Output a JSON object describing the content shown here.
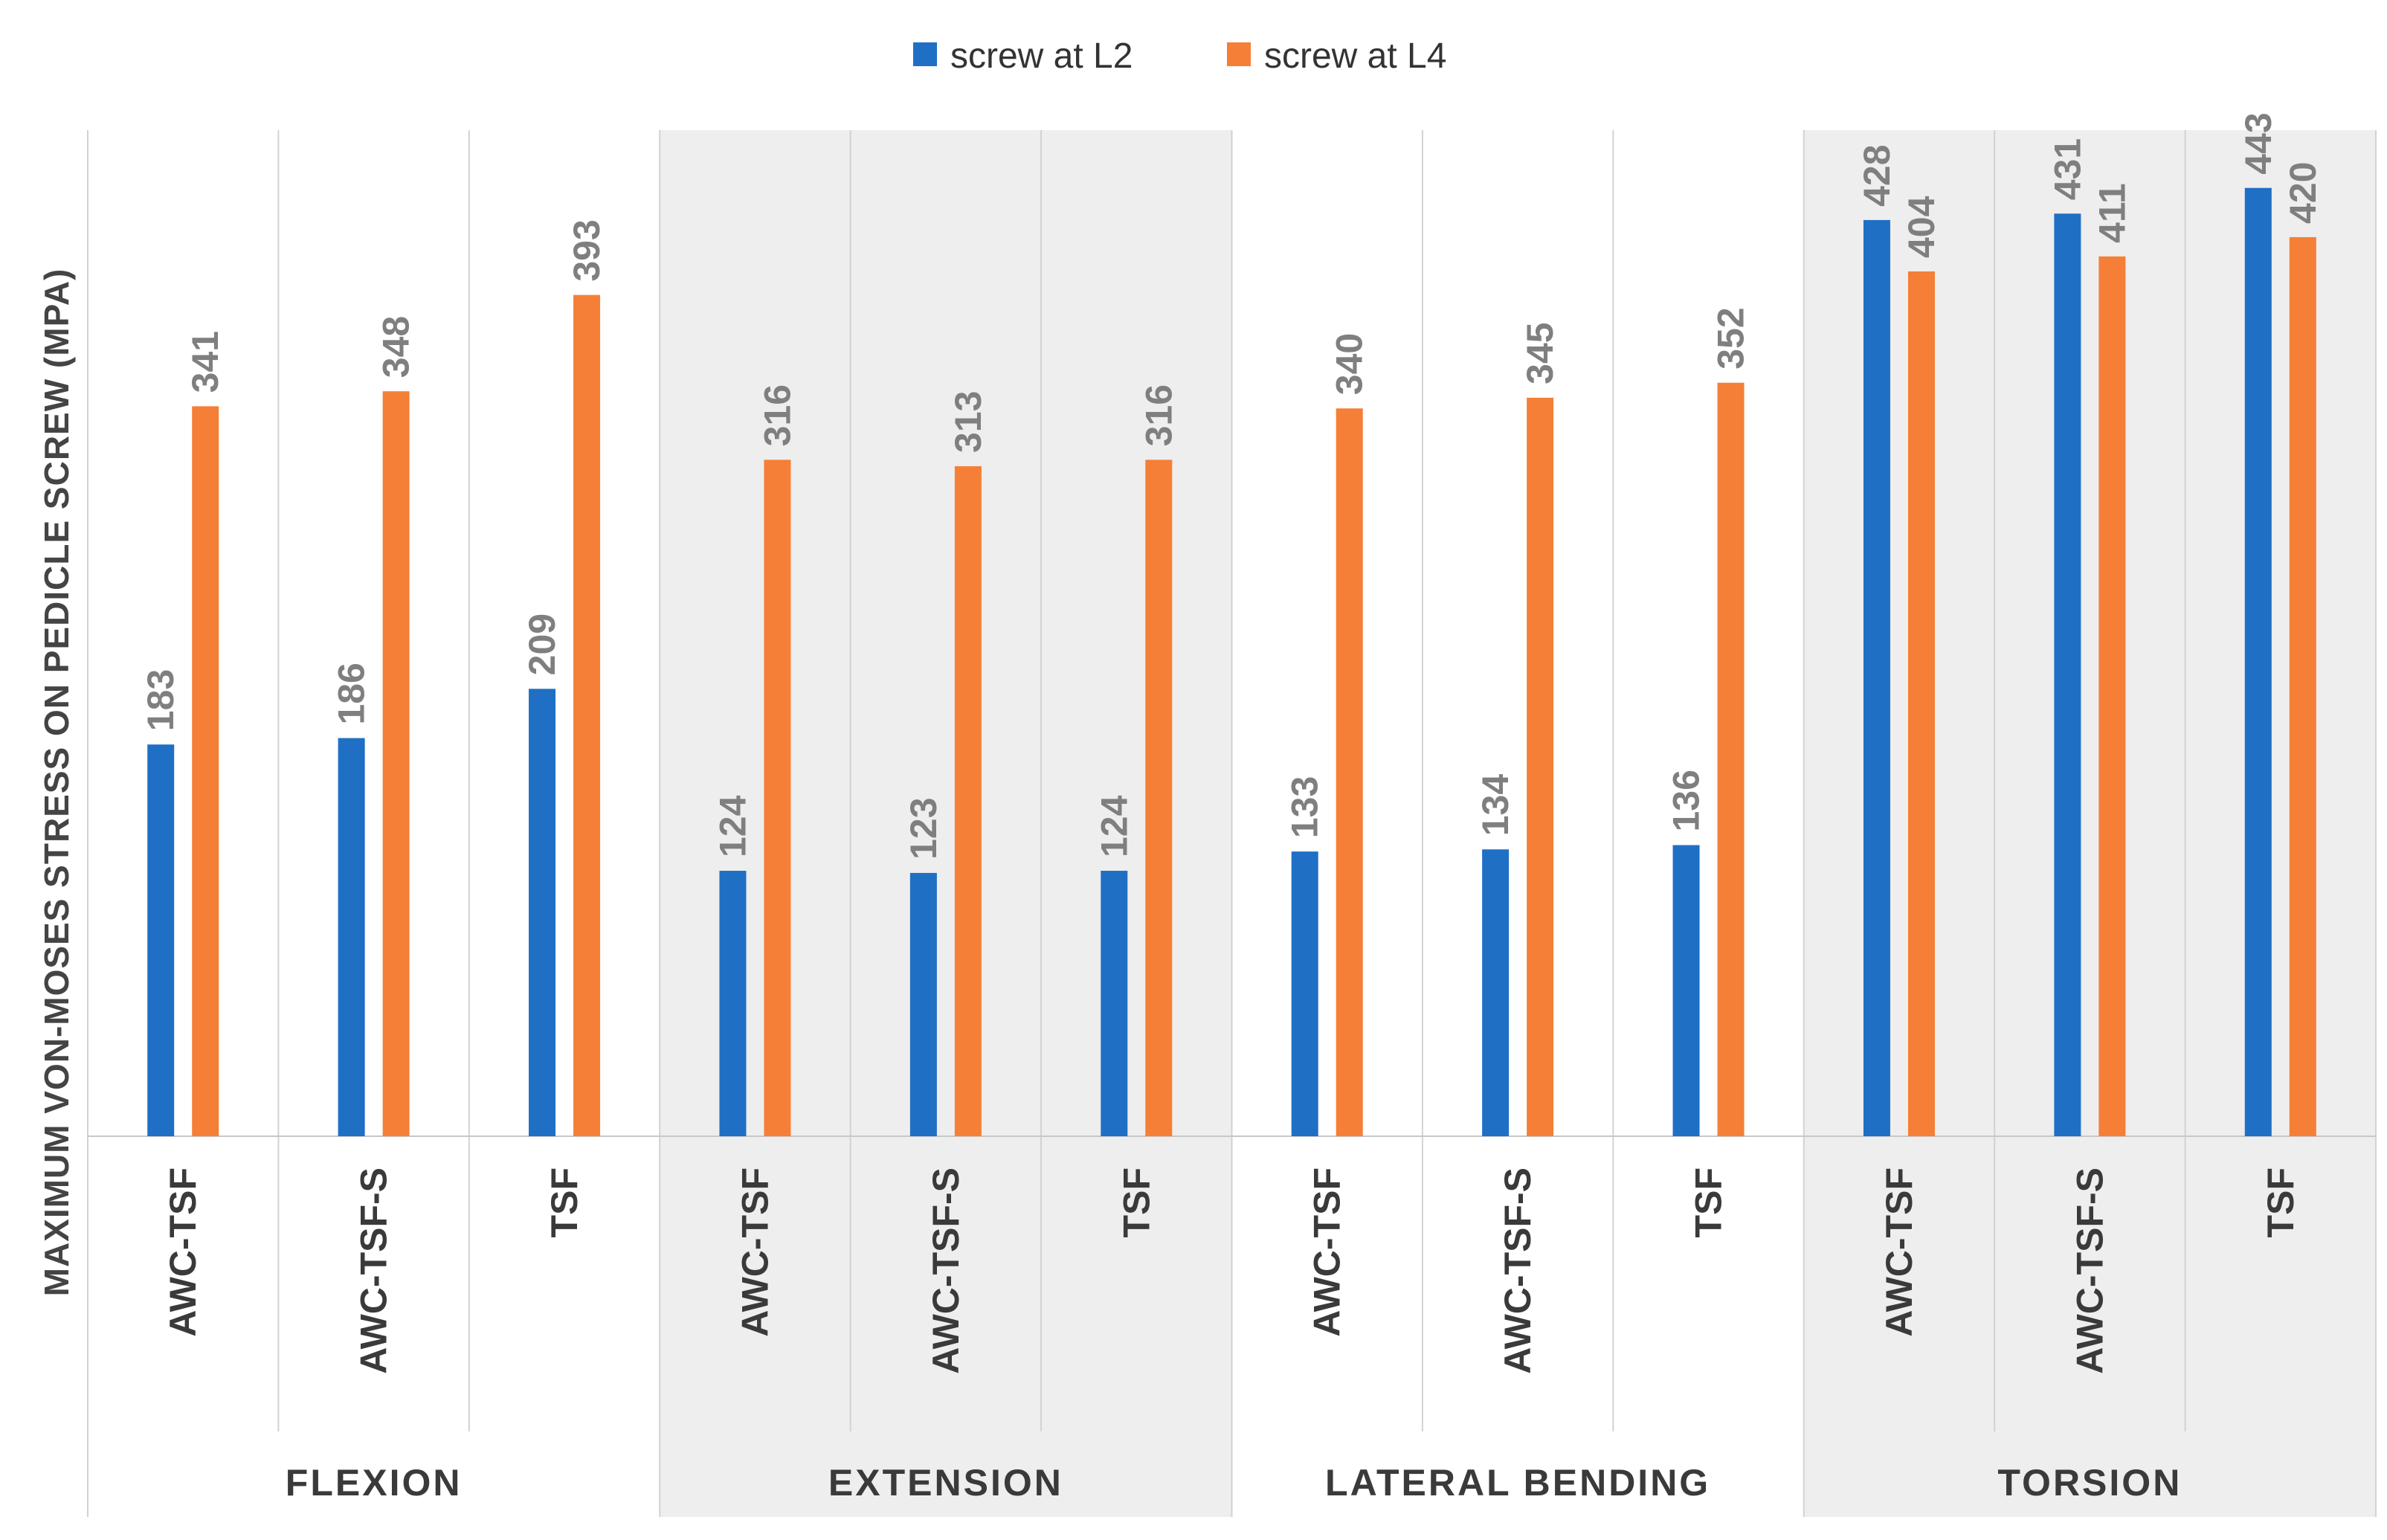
{
  "chart_data": {
    "type": "bar",
    "title": "",
    "ylabel": "MAXIMUM VON-MOSES STRESS ON PEDICLE SCREW (MPA)",
    "xlabel": "",
    "ylim": [
      0,
      470
    ],
    "legend_position": "top-center",
    "groups": [
      "FLEXION",
      "EXTENSION",
      "LATERAL BENDING",
      "TORSION"
    ],
    "categories_per_group": [
      "AWC-TSF",
      "AWC-TSF-S",
      "TSF"
    ],
    "categories": [
      "AWC-TSF",
      "AWC-TSF-S",
      "TSF",
      "AWC-TSF",
      "AWC-TSF-S",
      "TSF",
      "AWC-TSF",
      "AWC-TSF-S",
      "TSF",
      "AWC-TSF",
      "AWC-TSF-S",
      "TSF"
    ],
    "series": [
      {
        "name": "screw at L2",
        "color": "#1f6fc5",
        "values": [
          183,
          186,
          209,
          124,
          123,
          124,
          133,
          134,
          136,
          428,
          431,
          443
        ]
      },
      {
        "name": "screw at L4",
        "color": "#f57f36",
        "values": [
          341,
          348,
          393,
          316,
          313,
          316,
          340,
          345,
          352,
          404,
          411,
          420
        ]
      }
    ],
    "shaded_groups": [
      "EXTENSION",
      "TORSION"
    ],
    "shade_color": "#eeeeee",
    "grid": false
  }
}
